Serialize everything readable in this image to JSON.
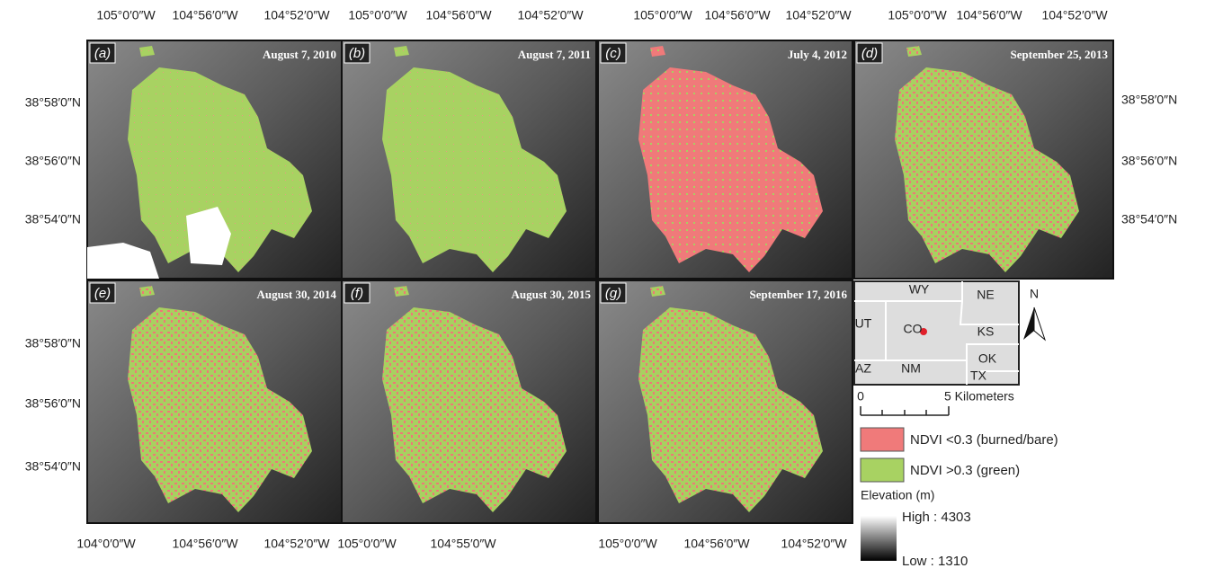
{
  "panels": [
    {
      "letter": "(a)",
      "date": "August 7, 2010"
    },
    {
      "letter": "(b)",
      "date": "August 7, 2011"
    },
    {
      "letter": "(c)",
      "date": "July 4, 2012"
    },
    {
      "letter": "(d)",
      "date": "September 25, 2013"
    },
    {
      "letter": "(e)",
      "date": "August 30, 2014"
    },
    {
      "letter": "(f)",
      "date": "August 30, 2015"
    },
    {
      "letter": "(g)",
      "date": "September 17, 2016"
    }
  ],
  "axis_labels": {
    "top": [
      "105°0′0″W",
      "104°56′0″W",
      "104°52′0″W",
      "105°0′0″W",
      "104°56′0″W",
      "104°52′0″W",
      "105°0′0″W",
      "104°56′0″W",
      "104°52′0″W",
      "105°0′0″W",
      "104°56′0″W",
      "104°52′0″W"
    ],
    "left": [
      "38°58′0″N",
      "38°56′0″N",
      "38°54′0″N",
      "38°58′0″N",
      "38°56′0″N",
      "38°54′0″N"
    ],
    "right": [
      "38°58′0″N",
      "38°56′0″N",
      "38°54′0″N"
    ],
    "bottom": [
      "104°0′0″W",
      "104°56′0″W",
      "104°52′0″W",
      "105°0′0″W",
      "104°55′0″W",
      "105°0′0″W",
      "104°56′0″W",
      "104°52′0″W"
    ]
  },
  "inset": {
    "states": [
      "WY",
      "NE",
      "UT",
      "CO",
      "KS",
      "AZ",
      "NM",
      "OK",
      "TX"
    ]
  },
  "scale_bar": {
    "start": "0",
    "end": "5 Kilometers"
  },
  "north_arrow": "N",
  "legend": {
    "items": [
      "NDVI <0.3 (burned/bare)",
      "NDVI >0.3 (green)"
    ],
    "elevation_title": "Elevation (m)",
    "high": "High : 4303",
    "low": "Low : 1310"
  }
}
